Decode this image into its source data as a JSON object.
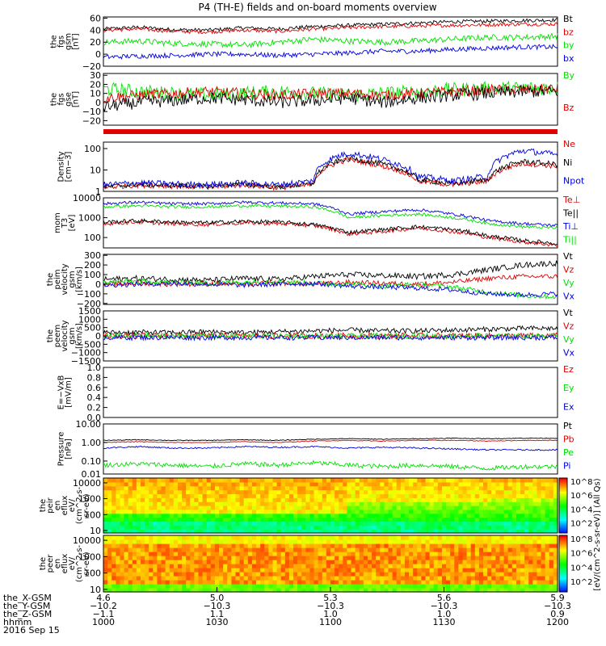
{
  "title": "P4 (TH-E) fields and on-board moments overview",
  "colors": {
    "black": "#000000",
    "red": "#e00000",
    "green": "#00e000",
    "blue": "#0000e0"
  },
  "chart_data": [
    {
      "type": "line",
      "panel": "fgs_gsm",
      "ylabel": [
        "the",
        "fgs",
        "gsm",
        "[nT]"
      ],
      "ylim": [
        -20,
        62
      ],
      "yticks": [
        "60",
        "40",
        "20",
        "0",
        "−20"
      ],
      "tickvals": [
        60,
        40,
        20,
        0,
        -20
      ],
      "series": [
        {
          "name": "Bt",
          "color": "black",
          "base": [
            42,
            45,
            41,
            40,
            44,
            42,
            46,
            48,
            50,
            52,
            54,
            55,
            56,
            57
          ],
          "noise": 3
        },
        {
          "name": "bz",
          "color": "red",
          "base": [
            40,
            42,
            38,
            37,
            40,
            38,
            42,
            44,
            46,
            47,
            48,
            49,
            50,
            50
          ],
          "noise": 3
        },
        {
          "name": "by",
          "color": "green",
          "base": [
            20,
            22,
            18,
            17,
            15,
            20,
            25,
            22,
            20,
            22,
            25,
            28,
            28,
            30
          ],
          "noise": 5
        },
        {
          "name": "bx",
          "color": "blue",
          "base": [
            -5,
            -3,
            -2,
            0,
            0,
            -2,
            0,
            2,
            5,
            5,
            8,
            10,
            12,
            12
          ],
          "noise": 4
        }
      ]
    },
    {
      "type": "line",
      "panel": "fgs_gse",
      "ylabel": [
        "the",
        "fgs",
        "gse",
        "[nT]"
      ],
      "ylim": [
        -25,
        32
      ],
      "yticks": [
        "30",
        "20",
        "10",
        "0",
        "−10",
        "−20"
      ],
      "tickvals": [
        30,
        20,
        10,
        0,
        -10,
        -20
      ],
      "series": [
        {
          "name": "By",
          "color": "green",
          "base": [
            15,
            12,
            10,
            8,
            10,
            12,
            10,
            8,
            10,
            12,
            14,
            15,
            16,
            16
          ],
          "noise": 8
        },
        {
          "name": "Bz",
          "color": "red",
          "base": [
            5,
            8,
            10,
            12,
            10,
            8,
            10,
            10,
            8,
            10,
            12,
            14,
            14,
            15
          ],
          "noise": 6
        },
        {
          "name": "",
          "color": "black",
          "base": [
            -5,
            0,
            2,
            5,
            3,
            0,
            2,
            5,
            0,
            5,
            8,
            10,
            12,
            12
          ],
          "noise": 7
        }
      ]
    },
    {
      "type": "bar",
      "panel": "status_bar",
      "color": "red"
    },
    {
      "type": "line",
      "panel": "density",
      "ylabel": [
        "Density",
        "[cm−3]"
      ],
      "scale": "log",
      "ylim": [
        1,
        200
      ],
      "yticks": [
        "100",
        "10",
        "1"
      ],
      "tickvals": [
        100,
        10,
        1
      ],
      "series": [
        {
          "name": "Ne",
          "color": "red",
          "base": [
            1.5,
            2,
            1.8,
            1.6,
            2,
            1.5,
            2,
            30,
            15,
            3,
            2,
            3,
            20,
            15
          ],
          "noise": 0.25
        },
        {
          "name": "Ni",
          "color": "black",
          "base": [
            1.6,
            2.1,
            1.9,
            1.7,
            2.2,
            1.6,
            2.2,
            35,
            18,
            3.5,
            2.2,
            3.5,
            25,
            18
          ],
          "noise": 0.25
        },
        {
          "name": "Npot",
          "color": "blue",
          "base": [
            2,
            2.5,
            2.2,
            2,
            2.5,
            2,
            3,
            60,
            30,
            5,
            3,
            5,
            80,
            50
          ],
          "noise": 0.3
        }
      ]
    },
    {
      "type": "line",
      "panel": "temperature",
      "ylabel": [
        "mom",
        "T3",
        "[eV]"
      ],
      "scale": "log",
      "ylim": [
        30,
        10000
      ],
      "yticks": [
        "10000",
        "1000",
        "100"
      ],
      "tickvals": [
        10000,
        1000,
        100
      ],
      "series": [
        {
          "name": "Te⊥",
          "color": "red",
          "base": [
            500,
            600,
            500,
            450,
            550,
            500,
            400,
            150,
            200,
            300,
            200,
            100,
            60,
            40
          ],
          "noise": 0.2
        },
        {
          "name": "Te||",
          "color": "black",
          "base": [
            600,
            700,
            600,
            550,
            650,
            600,
            450,
            180,
            250,
            350,
            250,
            120,
            70,
            50
          ],
          "noise": 0.2
        },
        {
          "name": "Ti⊥",
          "color": "blue",
          "base": [
            5000,
            6000,
            5000,
            5000,
            6000,
            5500,
            5000,
            1500,
            2000,
            2500,
            1500,
            700,
            500,
            400
          ],
          "noise": 0.15
        },
        {
          "name": "Ti||",
          "color": "green",
          "base": [
            3500,
            4000,
            3500,
            3500,
            4000,
            3800,
            3500,
            1000,
            1300,
            1500,
            1000,
            500,
            350,
            300
          ],
          "noise": 0.15
        }
      ]
    },
    {
      "type": "line",
      "panel": "peim_velocity",
      "ylabel": [
        "the",
        "peim",
        "velocity",
        "gsm",
        "[km/s]"
      ],
      "ylim": [
        -210,
        310
      ],
      "yticks": [
        "300",
        "200",
        "100",
        "0",
        "−100",
        "−200"
      ],
      "tickvals": [
        300,
        200,
        100,
        0,
        -100,
        -200
      ],
      "series": [
        {
          "name": "Vt",
          "color": "black",
          "base": [
            50,
            60,
            50,
            40,
            60,
            50,
            80,
            100,
            90,
            80,
            100,
            150,
            200,
            220
          ],
          "noise": 30
        },
        {
          "name": "Vz",
          "color": "red",
          "base": [
            0,
            10,
            0,
            5,
            0,
            10,
            0,
            20,
            10,
            0,
            20,
            60,
            80,
            80
          ],
          "noise": 25
        },
        {
          "name": "Vy",
          "color": "green",
          "base": [
            20,
            30,
            20,
            10,
            20,
            30,
            10,
            0,
            -20,
            0,
            -30,
            -80,
            -120,
            -130
          ],
          "noise": 25
        },
        {
          "name": "Vx",
          "color": "blue",
          "base": [
            -10,
            0,
            10,
            0,
            -10,
            0,
            10,
            -20,
            -30,
            -40,
            -60,
            -100,
            -110,
            -100
          ],
          "noise": 25
        }
      ]
    },
    {
      "type": "line",
      "panel": "peem_velocity",
      "ylabel": [
        "the",
        "peem",
        "velocity",
        "gsm",
        "[km/s]"
      ],
      "ylim": [
        -1500,
        1500
      ],
      "yticks": [
        "1500",
        "1000",
        "500",
        "0",
        "−500",
        "−1000",
        "−1500"
      ],
      "tickvals": [
        1500,
        1000,
        500,
        0,
        -500,
        -1000,
        -1500
      ],
      "series": [
        {
          "name": "Vt",
          "color": "black",
          "base": [
            200,
            220,
            200,
            250,
            200,
            250,
            300,
            350,
            300,
            300,
            350,
            400,
            450,
            450
          ],
          "noise": 150
        },
        {
          "name": "Vz",
          "color": "red",
          "base": [
            0,
            0,
            0,
            0,
            0,
            0,
            0,
            0,
            0,
            0,
            0,
            0,
            0,
            0
          ],
          "noise": 180
        },
        {
          "name": "Vy",
          "color": "green",
          "base": [
            0,
            0,
            0,
            0,
            0,
            0,
            0,
            0,
            0,
            0,
            0,
            0,
            0,
            0
          ],
          "noise": 150
        },
        {
          "name": "Vx",
          "color": "blue",
          "base": [
            -100,
            -100,
            -100,
            -100,
            -100,
            -100,
            -100,
            -100,
            -100,
            -100,
            -100,
            -100,
            -100,
            -100
          ],
          "noise": 150
        }
      ]
    },
    {
      "type": "line",
      "panel": "efield",
      "ylabel": [
        "E=−VxB",
        "[mV/m]"
      ],
      "ylim": [
        0,
        1
      ],
      "yticks": [
        "1.0",
        "0.8",
        "0.6",
        "0.4",
        "0.2",
        "0.0"
      ],
      "tickvals": [
        1,
        0.8,
        0.6,
        0.4,
        0.2,
        0
      ],
      "series": [
        {
          "name": "Ez",
          "color": "red",
          "base": [],
          "noise": 0
        },
        {
          "name": "Ey",
          "color": "green",
          "base": [],
          "noise": 0
        },
        {
          "name": "Ex",
          "color": "blue",
          "base": [],
          "noise": 0
        }
      ]
    },
    {
      "type": "line",
      "panel": "pressure",
      "ylabel": [
        "Pressure",
        "[nPa]"
      ],
      "scale": "log",
      "ylim": [
        0.02,
        10
      ],
      "yticks": [
        "10.00",
        "1.00",
        "0.10",
        "0.01"
      ],
      "tickvals": [
        10,
        1,
        0.1,
        0.01
      ],
      "series": [
        {
          "name": "Pt",
          "color": "black",
          "base": [
            1.3,
            1.4,
            1.3,
            1.3,
            1.4,
            1.3,
            1.5,
            1.6,
            1.5,
            1.6,
            1.7,
            1.6,
            1.7,
            1.7
          ],
          "noise": 0.04
        },
        {
          "name": "Pb",
          "color": "red",
          "base": [
            1.0,
            1.1,
            1.0,
            1.0,
            1.1,
            1.0,
            1.2,
            1.3,
            1.2,
            1.3,
            1.3,
            1.2,
            1.3,
            1.3
          ],
          "noise": 0.04
        },
        {
          "name": "Pe",
          "color": "green",
          "base": [
            0.06,
            0.07,
            0.06,
            0.05,
            0.07,
            0.06,
            0.08,
            0.06,
            0.05,
            0.06,
            0.05,
            0.04,
            0.05,
            0.05
          ],
          "noise": 0.25
        },
        {
          "name": "Pi",
          "color": "blue",
          "base": [
            0.5,
            0.6,
            0.5,
            0.5,
            0.6,
            0.55,
            0.6,
            0.5,
            0.55,
            0.5,
            0.45,
            0.4,
            0.4,
            0.4
          ],
          "noise": 0.08
        }
      ]
    },
    {
      "type": "heatmap",
      "panel": "peir_spectrogram",
      "ylabel": [
        "the",
        "peir",
        "en",
        "eflux",
        "eV/",
        "(cm^2-s-",
        "sr-eV)"
      ],
      "scale": "log",
      "ylim": [
        7,
        20000
      ],
      "yticks": [
        "10000",
        "1000",
        "100",
        "10"
      ],
      "tickvals": [
        10000,
        1000,
        100,
        10
      ]
    },
    {
      "type": "heatmap",
      "panel": "peer_spectrogram",
      "ylabel": [
        "the",
        "peer",
        "en",
        "eflux",
        "eV/",
        "(cm^2-s-",
        "sr-eV)"
      ],
      "scale": "log",
      "ylim": [
        7,
        20000
      ],
      "yticks": [
        "10000",
        "1000",
        "100",
        "10"
      ],
      "tickvals": [
        10000,
        1000,
        100,
        10
      ]
    }
  ],
  "colorbar": {
    "label": "[eV/(cm^2-s-sr-eV)] (All Qs)",
    "ticks_top": [
      "10^8",
      "10^6",
      "10^4",
      "10^2"
    ],
    "ticks_bottom": [
      "10^8",
      "10^6",
      "10^4",
      "10^2"
    ]
  },
  "x_axis": {
    "row_labels": [
      "the_X-GSM",
      "the_Y-GSM",
      "the_Z-GSM",
      "hhmm",
      "2016 Sep 15"
    ],
    "ticks": [
      {
        "x_gsm": "4.6",
        "y_gsm": "−10.2",
        "z_gsm": "−1.1",
        "hhmm": "1000"
      },
      {
        "x_gsm": "5.0",
        "y_gsm": "−10.3",
        "z_gsm": "1.1",
        "hhmm": "1030"
      },
      {
        "x_gsm": "5.3",
        "y_gsm": "−10.3",
        "z_gsm": "1.0",
        "hhmm": "1100"
      },
      {
        "x_gsm": "5.6",
        "y_gsm": "−10.3",
        "z_gsm": "1.0",
        "hhmm": "1130"
      },
      {
        "x_gsm": "5.9",
        "y_gsm": "−10.3",
        "z_gsm": "0.9",
        "hhmm": "1200"
      }
    ]
  }
}
